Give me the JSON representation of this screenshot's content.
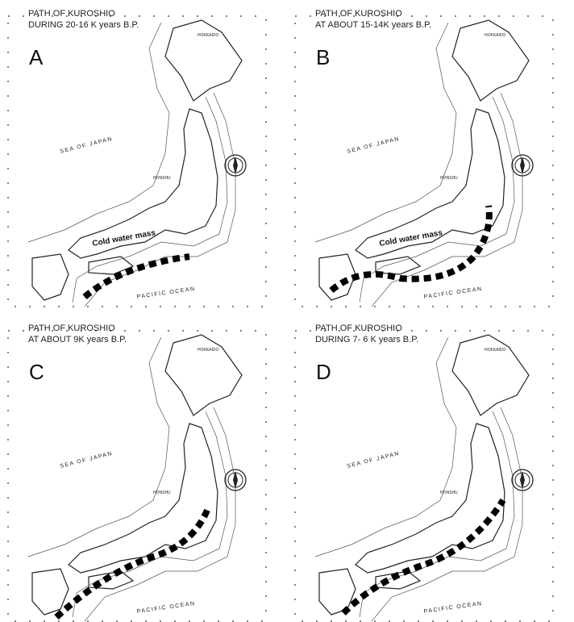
{
  "panels": [
    {
      "title_lines": [
        "PATH OF  KUROSHIO",
        "DURING 20-16 K years B.P."
      ],
      "letter": "A",
      "labels": {
        "sea": "SEA OF JAPAN",
        "ocean": "PACIFIC OCEAN",
        "north": "HOKKAIDO",
        "main": "HONSHU",
        "cold": "Cold water mass"
      }
    },
    {
      "title_lines": [
        "PATH OF  KUROSHIO",
        "AT ABOUT 15-14K years B.P."
      ],
      "letter": "B",
      "labels": {
        "sea": "SEA OF JAPAN",
        "ocean": "PACIFIC OCEAN",
        "north": "HOKKAIDO",
        "main": "HONSHU",
        "cold": "Cold water mass"
      }
    },
    {
      "title_lines": [
        "PATH OF  KUROSHIO",
        "AT ABOUT 9K years B.P."
      ],
      "letter": "C",
      "labels": {
        "sea": "SEA OF JAPAN",
        "ocean": "PACIFIC OCEAN",
        "north": "HOKKAIDO",
        "main": "HONSHU"
      }
    },
    {
      "title_lines": [
        "PATH OF  KUROSHIO",
        "DURING 7- 6 K years B.P."
      ],
      "letter": "D",
      "labels": {
        "sea": "SEA OF JAPAN",
        "ocean": "PACIFIC OCEAN",
        "north": "HOKKAIDO",
        "main": "HONSHU"
      }
    }
  ]
}
